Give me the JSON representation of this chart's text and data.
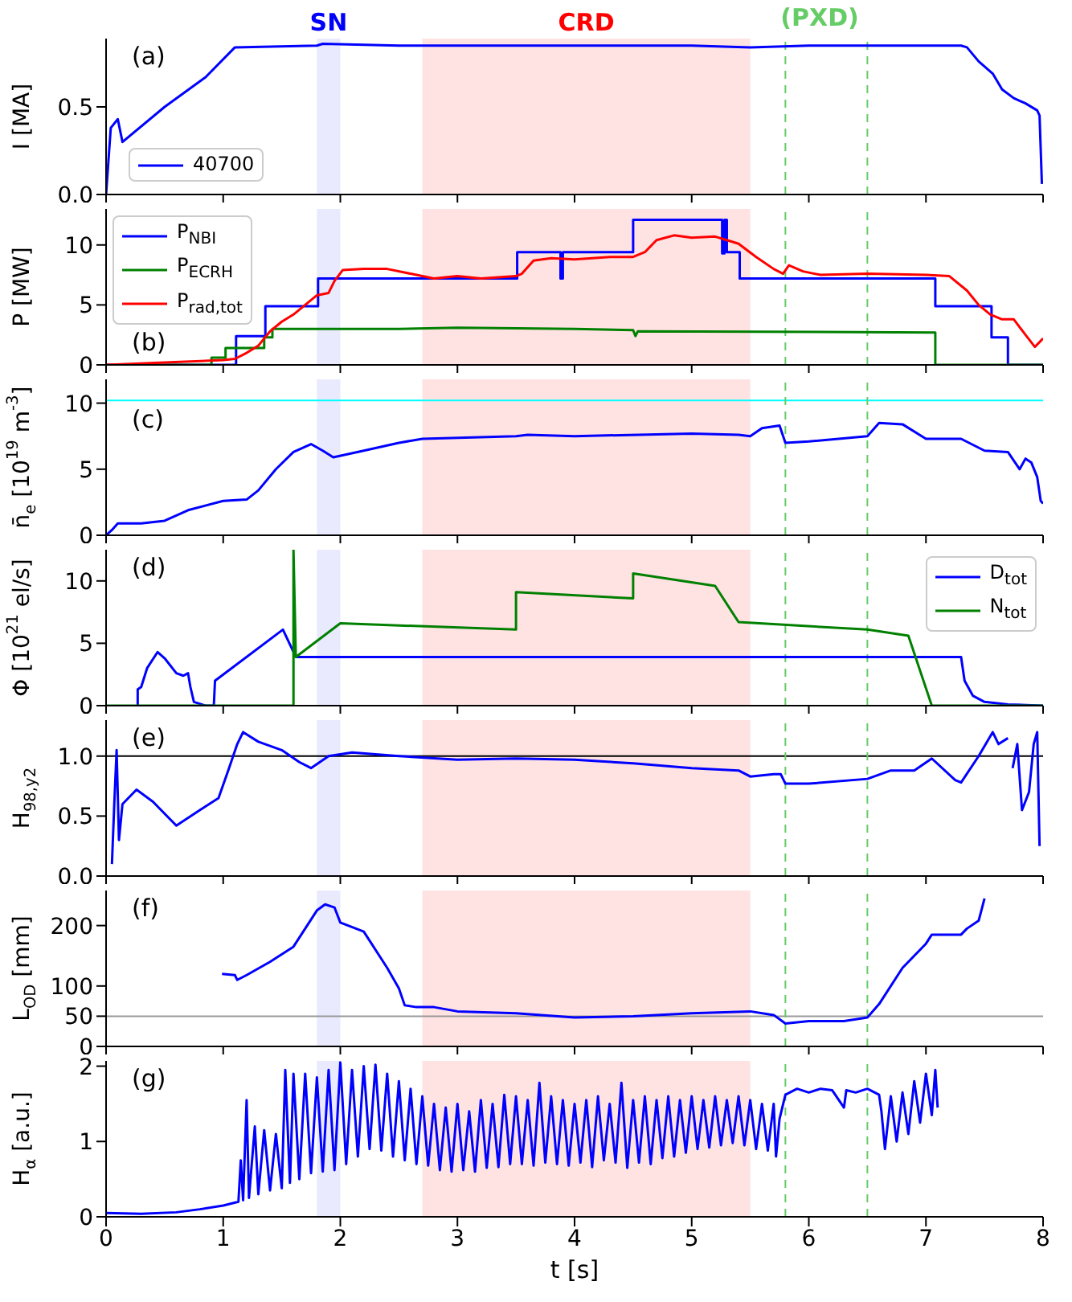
{
  "chart_data": [
    {
      "type": "line",
      "ylabel": "I [MA]",
      "xlim": [
        0,
        8
      ],
      "xticks": [
        0,
        1,
        2,
        3,
        4,
        5,
        6,
        7,
        8
      ],
      "ylim": [
        0,
        0.89
      ],
      "yticks": [
        {
          "value": 0,
          "label": "0.0"
        },
        {
          "value": 0.5,
          "label": "0.5"
        }
      ],
      "tick_labels": "y",
      "legend": "bottom left",
      "bands": [
        {
          "axis": "x",
          "from": 1.8,
          "to": 2.0,
          "label": "SN",
          "color": "#eaeaff"
        },
        {
          "axis": "x",
          "from": 2.7,
          "to": 5.5,
          "label": "CRD",
          "color": "#ffe2e2"
        }
      ],
      "ref_lines": [
        {
          "axis": "x",
          "value": 5.8,
          "color": "#66cc66",
          "line_style": "dashed",
          "label": "(PXD)"
        },
        {
          "axis": "x",
          "value": 6.5,
          "color": "#66cc66",
          "line_style": "dashed"
        }
      ],
      "annotations": [
        "(a)"
      ],
      "series": [
        {
          "name": "40700",
          "color": "#0000ff",
          "x": [
            0,
            0.04,
            0.1,
            0.14,
            0.5,
            0.85,
            1.1,
            1.8,
            1.85,
            2.5,
            3.0,
            4.0,
            5.0,
            5.5,
            6.0,
            7.0,
            7.3,
            7.35,
            7.45,
            7.57,
            7.65,
            7.75,
            7.85,
            7.95,
            7.97,
            7.99
          ],
          "values": [
            0,
            0.38,
            0.43,
            0.3,
            0.5,
            0.67,
            0.84,
            0.85,
            0.86,
            0.85,
            0.85,
            0.85,
            0.85,
            0.84,
            0.85,
            0.85,
            0.85,
            0.84,
            0.76,
            0.69,
            0.6,
            0.55,
            0.52,
            0.48,
            0.45,
            0.06
          ]
        }
      ]
    },
    {
      "type": "line",
      "ylabel": "P [MW]",
      "xlim": [
        0,
        8
      ],
      "xticks": [
        0,
        1,
        2,
        3,
        4,
        5,
        6,
        7,
        8
      ],
      "ylim": [
        0,
        13
      ],
      "yticks": [
        0,
        5,
        10
      ],
      "tick_labels": "y",
      "legend": "top left",
      "bands": [
        {
          "axis": "x",
          "from": 1.8,
          "to": 2.0,
          "color": "#eaeaff"
        },
        {
          "axis": "x",
          "from": 2.7,
          "to": 5.5,
          "color": "#ffe2e2"
        }
      ],
      "ref_lines": [
        {
          "axis": "x",
          "value": 5.8,
          "color": "#66cc66",
          "line_style": "dashed"
        },
        {
          "axis": "x",
          "value": 6.5,
          "color": "#66cc66",
          "line_style": "dashed"
        }
      ],
      "annotations": [
        "(b)"
      ],
      "series": [
        {
          "name": "P$_{NBI}$",
          "color": "#0000ff",
          "type": "step",
          "x": [
            0,
            1.11,
            1.36,
            1.81,
            3.51,
            3.88,
            3.9,
            4.5,
            5.26,
            5.28,
            5.3,
            5.41,
            7.08,
            7.56,
            7.7,
            8.0
          ],
          "values": [
            0,
            2.4,
            4.9,
            7.2,
            9.4,
            7.2,
            9.4,
            12.1,
            9.3,
            12.1,
            9.4,
            7.2,
            4.9,
            2.3,
            0,
            0
          ]
        },
        {
          "name": "P$_{ECRH}$",
          "color": "#008000",
          "x": [
            0,
            0.9,
            0.9,
            1.02,
            1.02,
            1.35,
            1.35,
            1.42,
            1.42,
            2.5,
            3.0,
            4.0,
            4.5,
            4.52,
            4.54,
            7.08,
            7.08,
            8.0
          ],
          "values": [
            0,
            0,
            0.6,
            0.6,
            1.4,
            1.4,
            2.3,
            2.3,
            3.0,
            3.0,
            3.1,
            3.0,
            2.9,
            2.4,
            2.8,
            2.7,
            0,
            0
          ]
        },
        {
          "name": "P$_{rad,tot}$",
          "color": "#ff0000",
          "x": [
            0,
            0.5,
            1.0,
            1.1,
            1.2,
            1.3,
            1.4,
            1.5,
            1.6,
            1.7,
            1.8,
            1.9,
            1.95,
            2.02,
            2.2,
            2.4,
            2.6,
            2.8,
            3.0,
            3.2,
            3.5,
            3.55,
            3.65,
            3.8,
            4.0,
            4.3,
            4.5,
            4.6,
            4.7,
            4.85,
            5.0,
            5.2,
            5.3,
            5.4,
            5.55,
            5.7,
            5.78,
            5.83,
            5.95,
            6.1,
            6.5,
            7.0,
            7.2,
            7.35,
            7.45,
            7.55,
            7.65,
            7.75,
            7.85,
            7.93,
            8.0
          ],
          "values": [
            0,
            0.2,
            0.4,
            0.5,
            1.0,
            1.6,
            2.8,
            3.6,
            4.2,
            5.0,
            5.8,
            6.0,
            7.0,
            7.9,
            8.0,
            8.0,
            7.6,
            7.2,
            7.4,
            7.2,
            7.4,
            7.6,
            8.7,
            8.9,
            8.8,
            9.0,
            9.0,
            9.4,
            10.4,
            10.8,
            10.6,
            10.7,
            10.4,
            10.1,
            9.0,
            8.0,
            7.6,
            8.3,
            7.8,
            7.5,
            7.6,
            7.5,
            7.4,
            6.2,
            5.0,
            4.2,
            3.8,
            3.8,
            2.5,
            1.5,
            2.2
          ]
        }
      ]
    },
    {
      "type": "line",
      "ylabel": "n̄$_{e}$ [10$^{19}$ m$^{-3}$]",
      "xlim": [
        0,
        8
      ],
      "xticks": [
        0,
        1,
        2,
        3,
        4,
        5,
        6,
        7,
        8
      ],
      "ylim": [
        0,
        11.8
      ],
      "yticks": [
        0,
        5,
        10
      ],
      "tick_labels": "y",
      "bands": [
        {
          "axis": "x",
          "from": 1.8,
          "to": 2.0,
          "color": "#eaeaff"
        },
        {
          "axis": "x",
          "from": 2.7,
          "to": 5.5,
          "color": "#ffe2e2"
        }
      ],
      "ref_lines": [
        {
          "axis": "y",
          "value": 10.2,
          "color": "#00ffff"
        },
        {
          "axis": "x",
          "value": 5.8,
          "color": "#66cc66",
          "line_style": "dashed"
        },
        {
          "axis": "x",
          "value": 6.5,
          "color": "#66cc66",
          "line_style": "dashed"
        }
      ],
      "annotations": [
        "(c)"
      ],
      "series": [
        {
          "color": "#0000ff",
          "x": [
            0,
            0.05,
            0.1,
            0.3,
            0.5,
            0.7,
            1.0,
            1.2,
            1.3,
            1.45,
            1.6,
            1.75,
            1.85,
            1.94,
            2.2,
            2.5,
            2.7,
            3.5,
            3.6,
            4.0,
            5.0,
            5.4,
            5.5,
            5.6,
            5.75,
            5.8,
            6.0,
            6.5,
            6.6,
            6.8,
            7.0,
            7.3,
            7.5,
            7.7,
            7.8,
            7.85,
            7.9,
            7.95,
            7.98,
            8.0
          ],
          "values": [
            0,
            0.4,
            0.9,
            0.9,
            1.1,
            1.9,
            2.6,
            2.7,
            3.4,
            5.0,
            6.3,
            6.9,
            6.4,
            5.9,
            6.4,
            7.0,
            7.3,
            7.5,
            7.6,
            7.5,
            7.7,
            7.6,
            7.5,
            8.1,
            8.3,
            7.0,
            7.1,
            7.5,
            8.5,
            8.4,
            7.3,
            7.3,
            6.4,
            6.3,
            5.0,
            5.8,
            5.5,
            4.4,
            2.6,
            2.4
          ]
        }
      ]
    },
    {
      "type": "line",
      "ylabel": "Φ [10$^{21}$ el/s]",
      "xlim": [
        0,
        8
      ],
      "xticks": [
        0,
        1,
        2,
        3,
        4,
        5,
        6,
        7,
        8
      ],
      "ylim": [
        0,
        12.5
      ],
      "yticks": [
        0,
        5,
        10
      ],
      "tick_labels": "y",
      "legend": "top right",
      "bands": [
        {
          "axis": "x",
          "from": 1.8,
          "to": 2.0,
          "color": "#eaeaff"
        },
        {
          "axis": "x",
          "from": 2.7,
          "to": 5.5,
          "color": "#ffe2e2"
        }
      ],
      "ref_lines": [
        {
          "axis": "x",
          "value": 5.8,
          "color": "#66cc66",
          "line_style": "dashed"
        },
        {
          "axis": "x",
          "value": 6.5,
          "color": "#66cc66",
          "line_style": "dashed"
        }
      ],
      "annotations": [
        "(d)"
      ],
      "series": [
        {
          "name": "D$_{tot}$",
          "color": "#0000ff",
          "x": [
            0.27,
            0.27,
            0.3,
            0.35,
            0.44,
            0.5,
            0.6,
            0.66,
            0.7,
            0.72,
            0.75,
            0.85,
            0.92,
            0.93,
            1.51,
            1.62,
            7.3,
            7.33,
            7.4,
            7.5,
            7.7,
            8.0
          ],
          "values": [
            0,
            1.3,
            1.5,
            3.0,
            4.3,
            3.8,
            2.6,
            2.4,
            2.6,
            1.5,
            0.3,
            0,
            0,
            2.0,
            6.1,
            3.9,
            3.9,
            2.0,
            0.8,
            0.3,
            0.1,
            0
          ]
        },
        {
          "name": "N$_{tot}$",
          "color": "#008000",
          "x": [
            0,
            1.6,
            1.6,
            1.62,
            2.0,
            3.5,
            3.5,
            4.5,
            4.5,
            5.2,
            5.4,
            6.5,
            6.85,
            7.05,
            8.0
          ],
          "values": [
            0,
            0,
            12.5,
            3.9,
            6.6,
            6.1,
            9.1,
            8.6,
            10.6,
            9.6,
            6.7,
            6.1,
            5.6,
            0,
            0
          ]
        }
      ]
    },
    {
      "type": "line",
      "ylabel": "H$_{98,y2}$",
      "xlim": [
        0,
        8
      ],
      "xticks": [
        0,
        1,
        2,
        3,
        4,
        5,
        6,
        7,
        8
      ],
      "ylim": [
        0,
        1.3
      ],
      "yticks": [
        {
          "value": 0,
          "label": "0.0"
        },
        {
          "value": 0.5,
          "label": "0.5"
        },
        {
          "value": 1,
          "label": "1.0"
        }
      ],
      "tick_labels": "y",
      "bands": [
        {
          "axis": "x",
          "from": 1.8,
          "to": 2.0,
          "color": "#eaeaff"
        },
        {
          "axis": "x",
          "from": 2.7,
          "to": 5.5,
          "color": "#ffe2e2"
        }
      ],
      "ref_lines": [
        {
          "axis": "y",
          "value": 1.0,
          "color": "#000000"
        },
        {
          "axis": "x",
          "value": 5.8,
          "color": "#66cc66",
          "line_style": "dashed"
        },
        {
          "axis": "x",
          "value": 6.5,
          "color": "#66cc66",
          "line_style": "dashed"
        }
      ],
      "annotations": [
        "(e)"
      ],
      "series": [
        {
          "color": "#0000ff",
          "x": [
            0.05,
            0.07,
            0.09,
            0.11,
            0.14,
            0.26,
            0.4,
            0.6,
            0.8,
            0.96,
            1.05,
            1.12,
            1.17,
            1.3,
            1.5,
            1.65,
            1.75,
            1.9,
            2.1,
            2.5,
            3.0,
            3.5,
            4.0,
            4.5,
            5.0,
            5.4,
            5.5,
            5.7,
            5.76,
            5.8,
            6.0,
            6.5,
            6.7,
            6.9,
            7.05,
            7.25,
            7.3,
            7.45,
            7.57,
            7.62,
            7.7,
            7.72,
            7.74,
            7.78,
            7.82,
            7.88,
            7.92,
            7.95,
            7.97
          ],
          "values": [
            0.1,
            0.6,
            1.05,
            0.3,
            0.6,
            0.72,
            0.62,
            0.42,
            0.55,
            0.65,
            0.9,
            1.1,
            1.2,
            1.12,
            1.05,
            0.95,
            0.9,
            1.0,
            1.03,
            1.0,
            0.97,
            0.98,
            0.97,
            0.94,
            0.9,
            0.88,
            0.83,
            0.85,
            0.85,
            0.77,
            0.77,
            0.81,
            0.88,
            0.88,
            0.98,
            0.8,
            0.78,
            1.0,
            1.2,
            1.1,
            1.15,
            null,
            0.9,
            1.1,
            0.55,
            0.7,
            1.1,
            1.2,
            0.25
          ]
        }
      ]
    },
    {
      "type": "line",
      "ylabel": "L$_{OD}$ [mm]",
      "xlim": [
        0,
        8
      ],
      "xticks": [
        0,
        1,
        2,
        3,
        4,
        5,
        6,
        7,
        8
      ],
      "ylim": [
        0,
        258
      ],
      "yticks": [
        0,
        50,
        100,
        200
      ],
      "tick_labels": "y",
      "bands": [
        {
          "axis": "x",
          "from": 1.8,
          "to": 2.0,
          "color": "#eaeaff"
        },
        {
          "axis": "x",
          "from": 2.7,
          "to": 5.5,
          "color": "#ffe2e2"
        }
      ],
      "ref_lines": [
        {
          "axis": "y",
          "value": 50,
          "color": "#999999"
        },
        {
          "axis": "x",
          "value": 5.8,
          "color": "#66cc66",
          "line_style": "dashed"
        },
        {
          "axis": "x",
          "value": 6.5,
          "color": "#66cc66",
          "line_style": "dashed"
        }
      ],
      "annotations": [
        "(f)"
      ],
      "series": [
        {
          "color": "#0000ff",
          "x": [
            0.99,
            1.1,
            1.12,
            1.2,
            1.4,
            1.6,
            1.8,
            1.87,
            1.95,
            2.0,
            2.2,
            2.4,
            2.5,
            2.55,
            2.65,
            2.8,
            3.0,
            3.5,
            4.0,
            4.5,
            5.0,
            5.5,
            5.7,
            5.8,
            6.0,
            6.3,
            6.5,
            6.6,
            6.8,
            7.0,
            7.05,
            7.3,
            7.35,
            7.45,
            7.48,
            7.5
          ],
          "values": [
            120,
            118,
            110,
            118,
            140,
            165,
            225,
            235,
            230,
            205,
            190,
            130,
            96,
            68,
            65,
            65,
            58,
            55,
            48,
            50,
            55,
            58,
            52,
            38,
            42,
            42,
            48,
            70,
            130,
            170,
            185,
            185,
            195,
            208,
            230,
            245
          ]
        }
      ]
    },
    {
      "type": "line",
      "ylabel": "H$_{α}$ [a.u.]",
      "xlabel": "t [s]",
      "xlim": [
        0,
        8
      ],
      "xticks": [
        0,
        1,
        2,
        3,
        4,
        5,
        6,
        7,
        8
      ],
      "ylim": [
        0,
        2.07
      ],
      "yticks": [
        0,
        1,
        2
      ],
      "bands": [
        {
          "axis": "x",
          "from": 1.8,
          "to": 2.0,
          "color": "#eaeaff"
        },
        {
          "axis": "x",
          "from": 2.7,
          "to": 5.5,
          "color": "#ffe2e2"
        }
      ],
      "ref_lines": [
        {
          "axis": "x",
          "value": 5.8,
          "color": "#66cc66",
          "line_style": "dashed"
        },
        {
          "axis": "x",
          "value": 6.5,
          "color": "#66cc66",
          "line_style": "dashed"
        }
      ],
      "annotations": [
        "(g)"
      ],
      "series": [
        {
          "color": "#0000ff",
          "x": [
            0,
            0.3,
            0.6,
            0.8,
            1.0,
            1.13,
            1.15,
            1.17,
            1.2,
            1.22,
            1.27,
            1.3,
            1.35,
            1.4,
            1.45,
            1.5,
            1.53,
            1.57,
            1.6,
            1.65,
            1.7,
            1.75,
            1.8,
            1.85,
            1.9,
            1.95,
            2.0,
            2.05,
            2.1,
            2.15,
            2.2,
            2.25,
            2.3,
            2.35,
            2.4,
            2.45,
            2.5,
            2.55,
            2.6,
            2.65,
            2.7,
            2.75,
            2.8,
            2.85,
            2.9,
            2.95,
            3.0,
            3.05,
            3.1,
            3.15,
            3.2,
            3.25,
            3.3,
            3.35,
            3.4,
            3.45,
            3.5,
            3.55,
            3.6,
            3.65,
            3.7,
            3.75,
            3.8,
            3.85,
            3.9,
            3.95,
            4.0,
            4.05,
            4.1,
            4.15,
            4.2,
            4.25,
            4.3,
            4.35,
            4.4,
            4.45,
            4.5,
            4.55,
            4.6,
            4.65,
            4.7,
            4.75,
            4.8,
            4.85,
            4.9,
            4.95,
            5.0,
            5.05,
            5.1,
            5.15,
            5.2,
            5.25,
            5.3,
            5.35,
            5.4,
            5.45,
            5.5,
            5.55,
            5.6,
            5.65,
            5.7,
            5.72,
            5.75,
            5.8,
            5.9,
            6.0,
            6.1,
            6.2,
            6.3,
            6.32,
            6.4,
            6.5,
            6.6,
            6.62,
            6.65,
            6.7,
            6.75,
            6.8,
            6.85,
            6.9,
            6.95,
            7.0,
            7.05,
            7.08,
            7.1
          ],
          "values": [
            0.05,
            0.04,
            0.06,
            0.1,
            0.15,
            0.2,
            0.75,
            0.22,
            1.55,
            0.25,
            1.2,
            0.3,
            1.15,
            0.35,
            1.1,
            0.38,
            1.95,
            0.45,
            1.9,
            0.5,
            1.9,
            0.58,
            1.85,
            0.6,
            1.95,
            0.62,
            2.05,
            0.7,
            1.95,
            0.8,
            2.0,
            0.9,
            2.02,
            0.88,
            1.9,
            0.8,
            1.8,
            0.75,
            1.7,
            0.7,
            1.6,
            0.68,
            1.5,
            0.62,
            1.45,
            0.6,
            1.5,
            0.62,
            1.4,
            0.6,
            1.55,
            0.65,
            1.5,
            0.66,
            1.62,
            0.7,
            1.6,
            0.7,
            1.55,
            0.68,
            1.78,
            0.72,
            1.6,
            0.7,
            1.55,
            0.68,
            1.5,
            0.72,
            1.55,
            0.66,
            1.6,
            0.75,
            1.5,
            0.72,
            1.78,
            0.65,
            1.55,
            0.72,
            1.6,
            0.7,
            1.55,
            0.78,
            1.6,
            0.8,
            1.55,
            0.85,
            1.6,
            0.9,
            1.55,
            0.92,
            1.6,
            0.95,
            1.55,
            0.98,
            1.6,
            0.95,
            1.55,
            0.9,
            1.5,
            0.88,
            1.5,
            0.8,
            1.3,
            1.62,
            1.7,
            1.65,
            1.7,
            1.68,
            1.45,
            1.68,
            1.65,
            1.7,
            1.62,
            1.4,
            0.9,
            1.6,
            1.0,
            1.65,
            1.1,
            1.8,
            1.25,
            1.9,
            1.35,
            1.95,
            1.45
          ]
        }
      ]
    }
  ]
}
